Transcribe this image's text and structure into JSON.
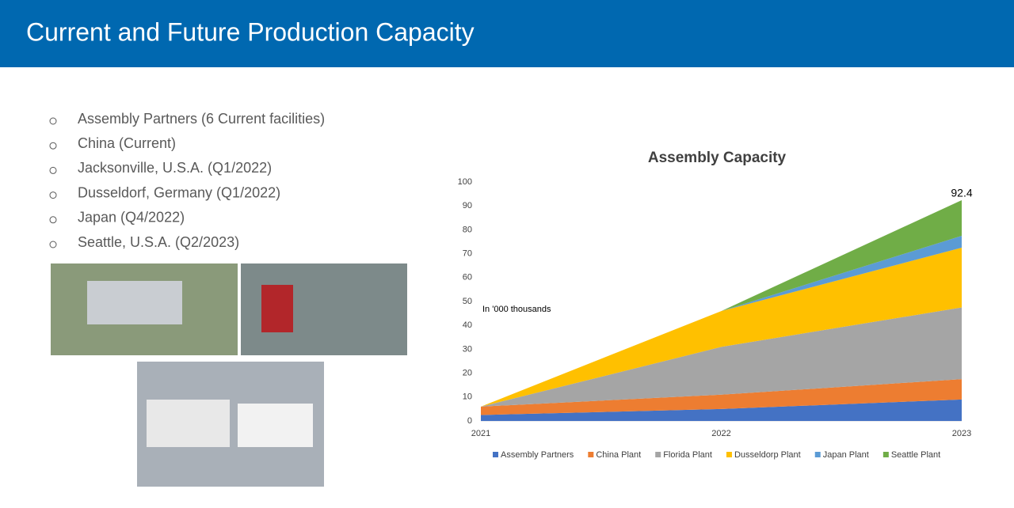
{
  "header": {
    "title": "Current and Future Production Capacity"
  },
  "bullets": [
    "Assembly Partners (6 Current facilities)",
    "China (Current)",
    "Jacksonville, U.S.A. (Q1/2022)",
    "Dusseldorf, Germany (Q1/2022)",
    "Japan (Q4/2022)",
    "Seattle, U.S.A. (Q2/2023)"
  ],
  "chart_data": {
    "type": "stacked_area",
    "title": "Assembly Capacity",
    "categories": [
      "2021",
      "2022",
      "2023"
    ],
    "series": [
      {
        "name": "Assembly Partners",
        "color": "#4472c4",
        "values": [
          2.5,
          5,
          9
        ]
      },
      {
        "name": "China Plant",
        "color": "#ed7d31",
        "values": [
          3.5,
          6,
          8.5
        ]
      },
      {
        "name": "Florida Plant",
        "color": "#a5a5a5",
        "values": [
          0,
          20,
          30
        ]
      },
      {
        "name": "Dusseldorp Plant",
        "color": "#ffc000",
        "values": [
          0,
          15,
          25
        ]
      },
      {
        "name": "Japan Plant",
        "color": "#5b9bd5",
        "values": [
          0,
          0,
          5
        ]
      },
      {
        "name": "Seattle Plant",
        "color": "#70ad47",
        "values": [
          0,
          0,
          14.9
        ]
      }
    ],
    "ylim": [
      0,
      100
    ],
    "yticks": [
      0,
      10,
      20,
      30,
      40,
      50,
      60,
      70,
      80,
      90,
      100
    ],
    "annotations": [
      "92.4",
      "In '000 thousands"
    ],
    "legend": "bottom"
  }
}
